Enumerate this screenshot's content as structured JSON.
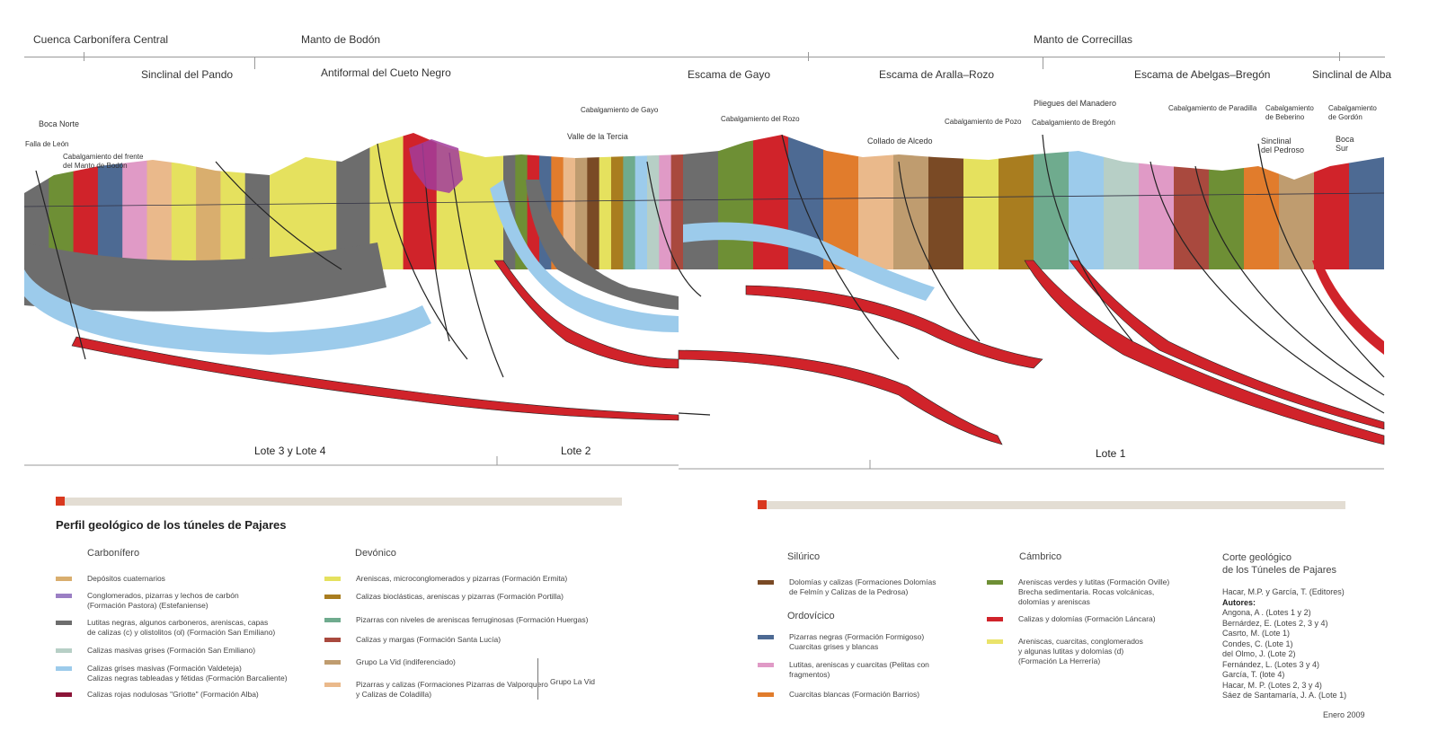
{
  "header": {
    "units": [
      "Cuenca Carbonífera Central",
      "Manto de Bodón",
      "Manto de Correcillas"
    ],
    "structures": [
      "Sinclinal del Pando",
      "Antiformal del Cueto Negro",
      "Escama de Gayo",
      "Escama de Aralla–Rozo",
      "Escama de Abelgas–Bregón",
      "Sinclinal de Alba"
    ]
  },
  "annotations": {
    "boca_norte": "Boca Norte",
    "falla_leon": "Falla de León",
    "cab_bodon": "Cabalgamiento del frente\ndel Manto de Bodón",
    "cab_gayo": "Cabalgamiento de Gayo",
    "valle_tercia": "Valle de la Tercia",
    "cab_rozo": "Cabalgamiento del Rozo",
    "collado_alcedo": "Collado de Alcedo",
    "cab_pozo": "Cabalgamiento de Pozo",
    "pliegues_manadero": "Pliegues del Manadero",
    "cab_bregon": "Cabalgamiento de Bregón",
    "cab_paradilla": "Cabalgamiento de Paradilla",
    "cab_beberino": "Cabalgamiento\nde Beberino",
    "cab_gordon": "Cabalgamiento\nde Gordón",
    "sinclinal_pedroso": "Sinclinal\ndel Pedroso",
    "boca_sur": "Boca\nSur"
  },
  "lotes": [
    "Lote 3 y Lote 4",
    "Lote 2",
    "Lote 1"
  ],
  "legend": {
    "title": "Perfil geológico de los túneles de Pajares",
    "accent": "#d9381e",
    "carbonifero": {
      "label": "Carbonífero",
      "items": [
        {
          "color": "#d9ae6e",
          "text": "Depósitos cuaternarios"
        },
        {
          "color": "#9b7fc4",
          "text": "Conglomerados, pizarras y lechos de carbón\n(Formación Pastora) (Estefaniense)"
        },
        {
          "color": "#6d6d6d",
          "text": "Lutitas negras, algunos carboneros, areniscas, capas\nde calizas (c) y olistolitos (ol) (Formación San Emiliano)"
        },
        {
          "color": "#b7cfc6",
          "text": "Calizas masivas grises (Formación San Emiliano)"
        },
        {
          "color": "#9ccbeb",
          "text": "Calizas grises masivas (Formación Valdeteja)\nCalizas negras tableadas y fétidas (Formación Barcaliente)"
        },
        {
          "color": "#8c1538",
          "text": "Calizas rojas nodulosas \"Griotte\" (Formación Alba)"
        }
      ]
    },
    "devonico": {
      "label": "Devónico",
      "items": [
        {
          "color": "#e5e15e",
          "text": "Areniscas, microconglomerados y pizarras (Formación Ermita)"
        },
        {
          "color": "#a97d1f",
          "text": "Calizas bioclásticas, areniscas y pizarras (Formación Portilla)"
        },
        {
          "color": "#6fab8e",
          "text": "Pizarras con niveles de areniscas ferruginosas (Formación Huergas)"
        },
        {
          "color": "#a9493e",
          "text": "Calizas y margas (Formación Santa Lucía)"
        },
        {
          "color": "#bf9c6f",
          "text": "Grupo La Vid (indiferenciado)"
        },
        {
          "color": "#eab98b",
          "text": "Pizarras y calizas (Formaciones Pizarras de Valporquero\ny Calizas de Coladilla)"
        }
      ],
      "group_label": "Grupo La Vid"
    },
    "silurico": {
      "label": "Silúrico",
      "items": [
        {
          "color": "#7a4a25",
          "text": "Dolomías y calizas (Formaciones Dolomías\nde Felmín y Calizas de la Pedrosa)"
        }
      ]
    },
    "ordovicico": {
      "label": "Ordovícico",
      "items": [
        {
          "color": "#4d6a93",
          "text": "Pizarras negras (Formación Formigoso)\nCuarcitas grises y blancas"
        },
        {
          "color": "#e09ac6",
          "text": "Lutitas, areniscas y cuarcitas (Pelitas con\nfragmentos)"
        },
        {
          "color": "#e17c2c",
          "text": "Cuarcitas blancas (Formación Barrios)"
        }
      ]
    },
    "cambrico": {
      "label": "Cámbrico",
      "items": [
        {
          "color": "#6e8f35",
          "text": "Areniscas verdes y lutitas (Formación Oville)\nBrecha sedimentaria. Rocas volcánicas,\ndolomías y areniscas"
        },
        {
          "color": "#d0232a",
          "text": "Calizas y dolomías (Formación Láncara)"
        },
        {
          "color": "#eae36a",
          "text": "Areniscas, cuarcitas, conglomerados\ny algunas lutitas y dolomías (d)\n(Formación La Herrería)"
        }
      ]
    }
  },
  "credits": {
    "title": "Corte geológico\nde los Túneles de Pajares",
    "editors": "Hacar, M.P. y García, T. (Editores)",
    "authors_label": "Autores:",
    "authors": [
      "Angona, A . (Lotes 1 y 2)",
      "Bernárdez, E. (Lotes 2, 3 y 4)",
      "Casrto, M. (Lote 1)",
      "Condes, C. (Lote 1)",
      "del Olmo, J. (Lote 2)",
      "Fernández, L. (Lotes 3 y 4)",
      "García, T. (lote 4)",
      "Hacar, M. P. (Lotes 2, 3 y 4)",
      "Sáez de Santamaría, J. A. (Lote 1)"
    ],
    "date": "Enero 2009"
  }
}
